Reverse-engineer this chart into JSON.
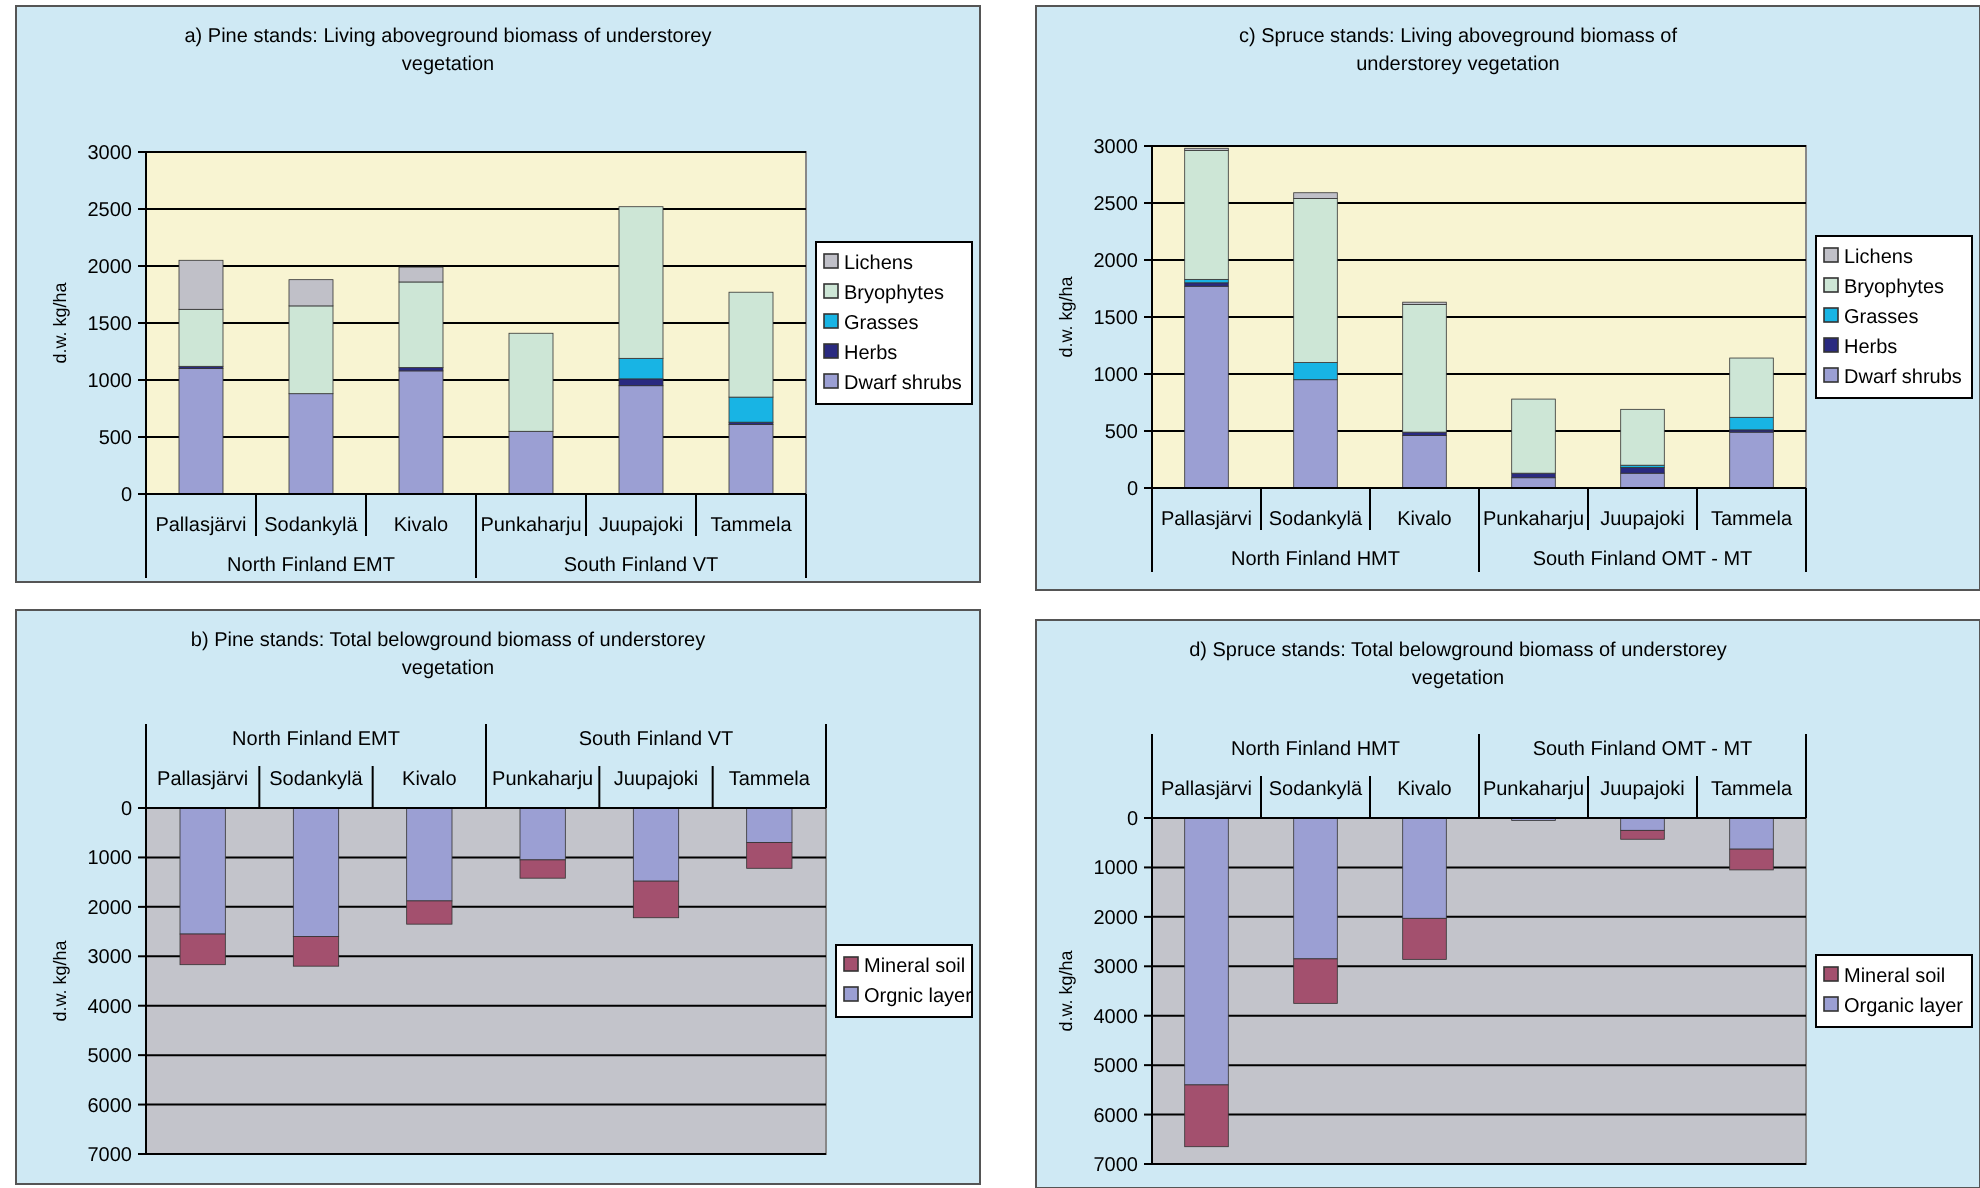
{
  "chart_data": [
    {
      "type": "bar",
      "stacked": true,
      "title": "a) Pine stands: Living aboveground biomass of understorey vegetation",
      "ylabel": "d.w. kg/ha",
      "categories": [
        "Pallasjärvi",
        "Sodankylä",
        "Kivalo",
        "Punkaharju",
        "Juupajoki",
        "Tammela"
      ],
      "annotations": [
        "North Finland EMT",
        "South Finland VT"
      ],
      "ylim": [
        0,
        3000
      ],
      "yticks": [
        0,
        500,
        1000,
        1500,
        2000,
        2500,
        3000
      ],
      "grid": "y",
      "legend": "right",
      "series": [
        {
          "name": "Dwarf shrubs",
          "color": "#9b9fd3",
          "values": [
            1100,
            880,
            1080,
            550,
            950,
            610
          ]
        },
        {
          "name": "Herbs",
          "color": "#2a2a80",
          "values": [
            20,
            0,
            30,
            0,
            60,
            20
          ]
        },
        {
          "name": "Grasses",
          "color": "#18b4e4",
          "values": [
            0,
            0,
            0,
            0,
            180,
            220
          ]
        },
        {
          "name": "Bryophytes",
          "color": "#cde6d6",
          "values": [
            500,
            770,
            750,
            860,
            1330,
            920
          ]
        },
        {
          "name": "Lichens",
          "color": "#c0c0c8",
          "values": [
            430,
            230,
            130,
            0,
            0,
            0
          ]
        }
      ]
    },
    {
      "type": "bar",
      "stacked": true,
      "title": "c) Spruce stands: Living aboveground biomass of understorey vegetation",
      "ylabel": "d.w. kg/ha",
      "categories": [
        "Pallasjärvi",
        "Sodankylä",
        "Kivalo",
        "Punkaharju",
        "Juupajoki",
        "Tammela"
      ],
      "annotations": [
        "North Finland HMT",
        "South Finland OMT - MT"
      ],
      "ylim": [
        0,
        3000
      ],
      "yticks": [
        0,
        500,
        1000,
        1500,
        2000,
        2500,
        3000
      ],
      "grid": "y",
      "legend": "right",
      "series": [
        {
          "name": "Dwarf shrubs",
          "color": "#9b9fd3",
          "values": [
            1770,
            950,
            460,
            90,
            130,
            490
          ]
        },
        {
          "name": "Herbs",
          "color": "#2a2a80",
          "values": [
            30,
            0,
            30,
            40,
            50,
            20
          ]
        },
        {
          "name": "Grasses",
          "color": "#18b4e4",
          "values": [
            30,
            150,
            0,
            0,
            20,
            110
          ]
        },
        {
          "name": "Bryophytes",
          "color": "#cde6d6",
          "values": [
            1130,
            1440,
            1120,
            650,
            490,
            520
          ]
        },
        {
          "name": "Lichens",
          "color": "#c0c0c8",
          "values": [
            20,
            50,
            20,
            0,
            0,
            0
          ]
        }
      ]
    },
    {
      "type": "bar",
      "stacked": true,
      "title": "b) Pine stands: Total belowground biomass of understorey vegetation",
      "ylabel": "d.w. kg/ha",
      "categories": [
        "Pallasjärvi",
        "Sodankylä",
        "Kivalo",
        "Punkaharju",
        "Juupajoki",
        "Tammela"
      ],
      "annotations": [
        "North Finland EMT",
        "South Finland VT"
      ],
      "ylim": [
        7000,
        0
      ],
      "yticks": [
        0,
        1000,
        2000,
        3000,
        4000,
        5000,
        6000,
        7000
      ],
      "grid": "y",
      "legend": "right",
      "series": [
        {
          "name": "Orgnic layer",
          "color": "#9b9fd3",
          "values": [
            2550,
            2600,
            1880,
            1050,
            1480,
            700
          ]
        },
        {
          "name": "Mineral soil",
          "color": "#a3506e",
          "values": [
            620,
            600,
            470,
            370,
            740,
            520
          ]
        }
      ]
    },
    {
      "type": "bar",
      "stacked": true,
      "title": "d) Spruce stands: Total belowground biomass of understorey vegetation",
      "ylabel": "d.w. kg/ha",
      "categories": [
        "Pallasjärvi",
        "Sodankylä",
        "Kivalo",
        "Punkaharju",
        "Juupajoki",
        "Tammela"
      ],
      "annotations": [
        "North Finland HMT",
        "South Finland OMT - MT"
      ],
      "ylim": [
        7000,
        0
      ],
      "yticks": [
        0,
        1000,
        2000,
        3000,
        4000,
        5000,
        6000,
        7000
      ],
      "grid": "y",
      "legend": "right",
      "series": [
        {
          "name": "Organic layer",
          "color": "#9b9fd3",
          "values": [
            5400,
            2850,
            2030,
            50,
            250,
            630
          ]
        },
        {
          "name": "Mineral soil",
          "color": "#a3506e",
          "values": [
            1250,
            900,
            830,
            0,
            180,
            420
          ]
        }
      ]
    }
  ]
}
